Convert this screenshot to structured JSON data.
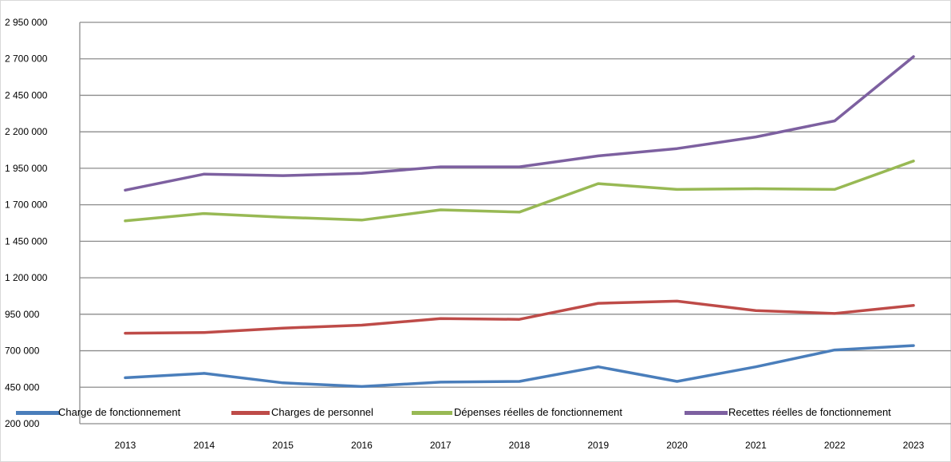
{
  "chart_data": {
    "type": "line",
    "title": "",
    "xlabel": "",
    "ylabel": "",
    "categories": [
      "2013",
      "2014",
      "2015",
      "2016",
      "2017",
      "2018",
      "2019",
      "2020",
      "2021",
      "2022",
      "2023"
    ],
    "y_ticks": [
      "200 000",
      "450 000",
      "700 000",
      "950 000",
      "1 200 000",
      "1 450 000",
      "1 700 000",
      "1 950 000",
      "2 200 000",
      "2 450 000",
      "2 700 000",
      "2 950 000"
    ],
    "ylim": [
      200000,
      2950000
    ],
    "grid": true,
    "legend_position": "bottom",
    "series": [
      {
        "name": "Charge de fonctionnement",
        "color": "#4a7ebb",
        "values": [
          515000,
          545000,
          480000,
          455000,
          485000,
          490000,
          590000,
          490000,
          590000,
          705000,
          735000
        ]
      },
      {
        "name": "Charges de personnel",
        "color": "#be4b48",
        "values": [
          820000,
          825000,
          855000,
          875000,
          920000,
          915000,
          1025000,
          1040000,
          975000,
          955000,
          1010000
        ]
      },
      {
        "name": "Dépenses réelles de fonctionnement",
        "color": "#98b954",
        "values": [
          1590000,
          1640000,
          1615000,
          1595000,
          1665000,
          1650000,
          1845000,
          1805000,
          1810000,
          1805000,
          2000000
        ]
      },
      {
        "name": "Recettes réelles de fonctionnement",
        "color": "#7d60a0",
        "values": [
          1800000,
          1910000,
          1900000,
          1915000,
          1960000,
          1960000,
          2035000,
          2085000,
          2165000,
          2275000,
          2715000
        ]
      }
    ]
  }
}
